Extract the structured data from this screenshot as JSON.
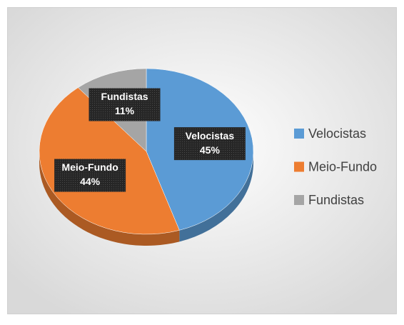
{
  "chart_data": {
    "type": "pie",
    "categories": [
      "Velocistas",
      "Meio-Fundo",
      "Fundistas"
    ],
    "values": [
      45,
      44,
      11
    ],
    "value_labels": [
      "45%",
      "44%",
      "11%"
    ],
    "colors": [
      "#5b9bd5",
      "#ed7d31",
      "#a5a5a5"
    ],
    "legend": "right"
  }
}
